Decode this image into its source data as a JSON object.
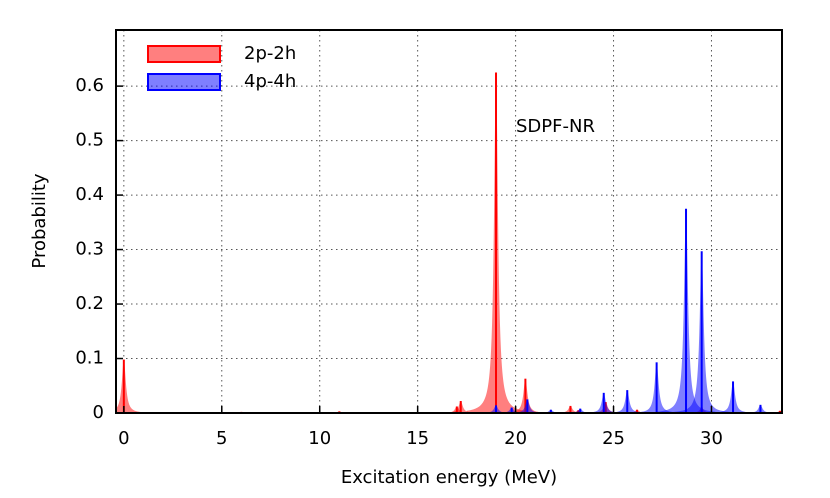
{
  "chart_data": {
    "type": "peaks",
    "xlabel": "Excitation energy (MeV)",
    "ylabel": "Probability",
    "annotation": "SDPF-NR",
    "xlim": [
      -0.4,
      33.6
    ],
    "ylim": [
      0,
      0.703
    ],
    "xticks": [
      0,
      5,
      10,
      15,
      20,
      25,
      30
    ],
    "yticks": [
      0,
      0.1,
      0.2,
      0.3,
      0.4,
      0.5,
      0.6
    ],
    "grid": true,
    "legend": "upper left",
    "series": [
      {
        "name": "2p-2h",
        "color": "#ff0000",
        "x": [
          0,
          6,
          11,
          17.0,
          17.2,
          19,
          20.5,
          22.8,
          23.2,
          24.6,
          26.2,
          29.5,
          33.5
        ],
        "values": [
          0.098,
          0.002,
          0.003,
          0.012,
          0.022,
          0.625,
          0.063,
          0.013,
          0.005,
          0.02,
          0.006,
          0.01,
          0.004
        ]
      },
      {
        "name": "4p-4h",
        "color": "#0000ff",
        "x": [
          19,
          19.8,
          20.6,
          21.8,
          23.3,
          24.5,
          25.7,
          27.2,
          28.7,
          29.5,
          31.1,
          32.5
        ],
        "values": [
          0.014,
          0.01,
          0.025,
          0.006,
          0.008,
          0.037,
          0.042,
          0.093,
          0.375,
          0.297,
          0.058,
          0.015
        ]
      }
    ]
  }
}
